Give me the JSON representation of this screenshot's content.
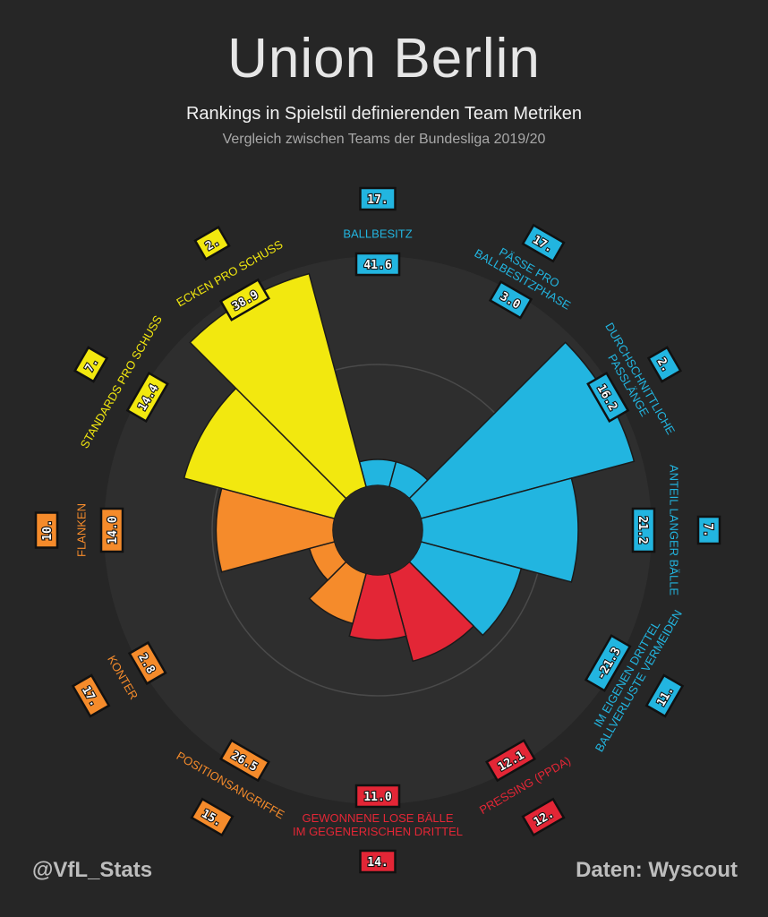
{
  "header": {
    "title": "Union Berlin",
    "subtitle": "Rankings in Spielstil definierenden Team Metriken",
    "subsubtitle": "Vergleich zwischen Teams der Bundesliga 2019/20"
  },
  "footer": {
    "left": "@VfL_Stats",
    "right": "Daten: Wyscout"
  },
  "colors": {
    "background": "#262626",
    "disc": "#2e2e2e",
    "blue": "#22b5e0",
    "yellow": "#f2e80f",
    "orange": "#f58b2b",
    "red": "#e32636"
  },
  "chart_data": {
    "type": "polar-bar",
    "categories": [
      {
        "label": [
          "BALLBESITZ"
        ],
        "value": "41.6",
        "rank": "17.",
        "rank_num": 17,
        "color": "blue"
      },
      {
        "label": [
          "PÄSSE PRO",
          "BALLBESITZPHASE"
        ],
        "value": "3.0",
        "rank": "17.",
        "rank_num": 17,
        "color": "blue"
      },
      {
        "label": [
          "DURCHSCHNITTLICHE",
          "PASSLÄNGE"
        ],
        "value": "16.2",
        "rank": "2.",
        "rank_num": 2,
        "color": "blue"
      },
      {
        "label": [
          "ANTEIL LANGER BÄLLE"
        ],
        "value": "21.2",
        "rank": "7.",
        "rank_num": 7,
        "color": "blue"
      },
      {
        "label": [
          "IM EIGENEN DRITTEL",
          "BALLVERLUSTE VERMEIDEN"
        ],
        "value": "-21.3",
        "rank": "11.",
        "rank_num": 11,
        "color": "blue"
      },
      {
        "label": [
          "PRESSING (PPDA)"
        ],
        "value": "12.1",
        "rank": "12.",
        "rank_num": 12,
        "color": "red"
      },
      {
        "label": [
          "GEWONNENE LOSE BÄLLE",
          "IM GEGENERISCHEN DRITTEL"
        ],
        "value": "11.0",
        "rank": "14.",
        "rank_num": 14,
        "color": "red"
      },
      {
        "label": [
          "POSITIONSANGRIFFE"
        ],
        "value": "26.5",
        "rank": "15.",
        "rank_num": 15,
        "color": "orange"
      },
      {
        "label": [
          "KONTER"
        ],
        "value": "2.8",
        "rank": "17.",
        "rank_num": 17,
        "color": "orange"
      },
      {
        "label": [
          "FLANKEN"
        ],
        "value": "14.0",
        "rank": "10.",
        "rank_num": 10,
        "color": "orange"
      },
      {
        "label": [
          "STANDARDS PRO SCHUSS"
        ],
        "value": "14.4",
        "rank": "7.",
        "rank_num": 7,
        "color": "yellow"
      },
      {
        "label": [
          "ECKEN PRO SCHUSS"
        ],
        "value": "38.9",
        "rank": "2.",
        "rank_num": 2,
        "color": "yellow"
      }
    ]
  }
}
